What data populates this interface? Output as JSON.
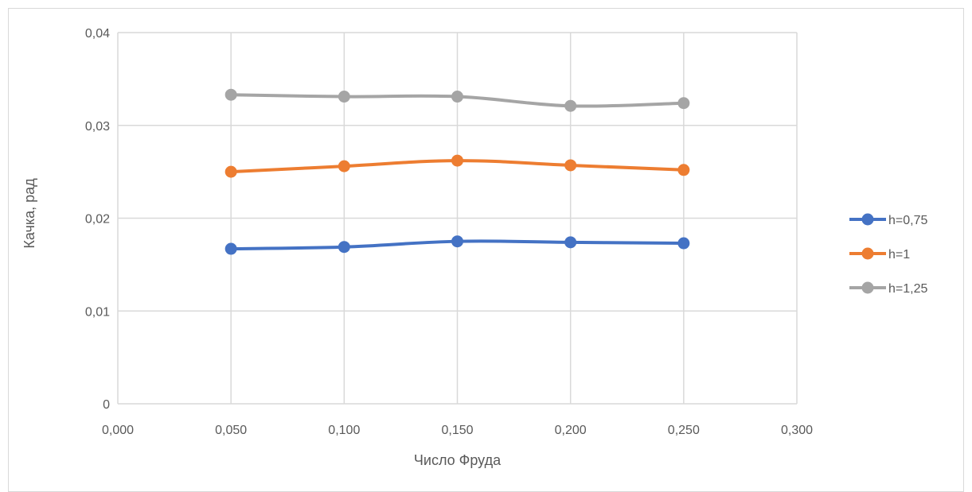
{
  "chart_data": {
    "type": "line",
    "title": "",
    "xlabel": "Число Фруда",
    "ylabel": "Качка, рад",
    "xlim": [
      0,
      0.3
    ],
    "ylim": [
      0,
      0.04
    ],
    "x_ticks": [
      "0,000",
      "0,050",
      "0,100",
      "0,150",
      "0,200",
      "0,250",
      "0,300"
    ],
    "y_ticks": [
      "0",
      "0,01",
      "0,02",
      "0,03",
      "0,04"
    ],
    "grid": true,
    "legend_position": "right",
    "x": [
      0.05,
      0.1,
      0.15,
      0.2,
      0.25
    ],
    "series": [
      {
        "name": "h=0,75",
        "color": "#4472c4",
        "values": [
          0.0167,
          0.0169,
          0.0175,
          0.0174,
          0.0173
        ]
      },
      {
        "name": "h=1",
        "color": "#ed7d31",
        "values": [
          0.025,
          0.0256,
          0.0262,
          0.0257,
          0.0252
        ]
      },
      {
        "name": "h=1,25",
        "color": "#a5a5a5",
        "values": [
          0.0333,
          0.0331,
          0.0331,
          0.0321,
          0.0324
        ]
      }
    ]
  }
}
